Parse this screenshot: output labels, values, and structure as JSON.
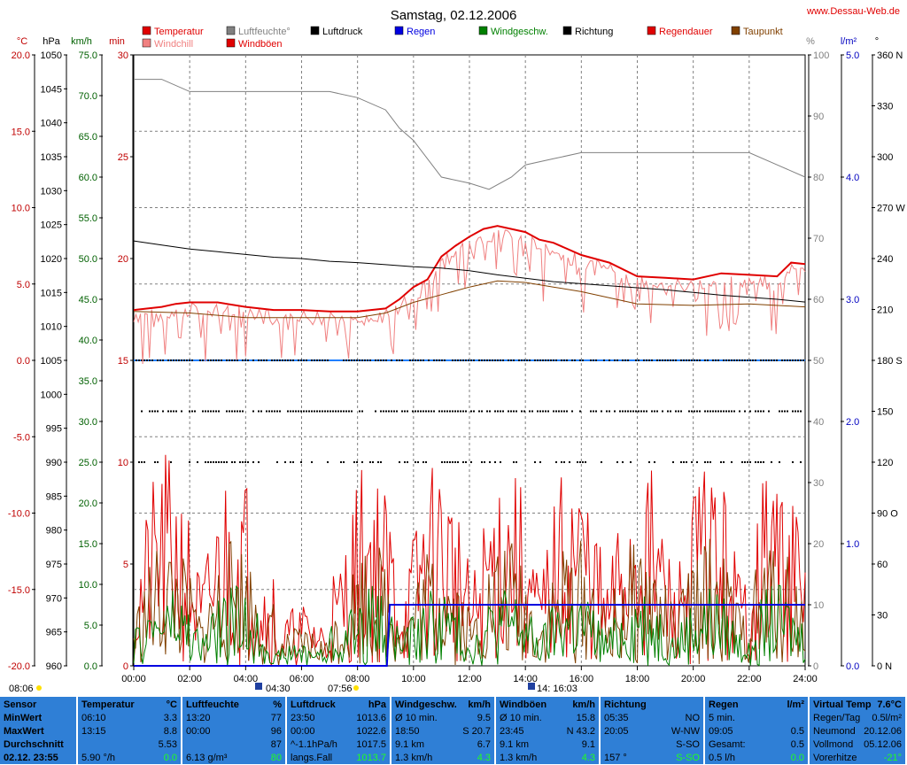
{
  "page": {
    "title": "Samstag, 02.12.2006",
    "site": "www.Dessau-Web.de"
  },
  "legend": [
    {
      "label": "Temperatur",
      "color": "#e00000"
    },
    {
      "label": "Windchill",
      "color": "#f08080"
    },
    {
      "label": "Luftfeuchte°",
      "color": "#808080"
    },
    {
      "label": "Windböen",
      "color": "#e00000"
    },
    {
      "label": "Luftdruck",
      "color": "#000000"
    },
    {
      "label": "Regen",
      "color": "#0000e0"
    },
    {
      "label": "Windgeschw.",
      "color": "#008000"
    },
    {
      "label": "Richtung",
      "color": "#000000"
    },
    {
      "label": "Regendauer",
      "color": "#e00000"
    },
    {
      "label": "Taupunkt",
      "color": "#804000"
    }
  ],
  "axes": {
    "temp": {
      "unit": "°C",
      "ticks": [
        "20.0",
        "15.0",
        "10.0",
        "5.0",
        "0.0",
        "-5.0",
        "-10.0",
        "-15.0",
        "-20.0"
      ],
      "color": "#c00000"
    },
    "pressure": {
      "unit": "hPa",
      "ticks": [
        "1050",
        "1045",
        "1040",
        "1035",
        "1030",
        "1025",
        "1020",
        "1015",
        "1010",
        "1005",
        "1000",
        "995",
        "990",
        "985",
        "980",
        "975",
        "970",
        "965",
        "960"
      ],
      "color": "#000000"
    },
    "wind": {
      "unit": "km/h",
      "ticks": [
        "75.0",
        "70.0",
        "65.0",
        "60.0",
        "55.0",
        "50.0",
        "45.0",
        "40.0",
        "35.0",
        "30.0",
        "25.0",
        "20.0",
        "15.0",
        "10.0",
        "5.0",
        "0.0"
      ],
      "color": "#006000"
    },
    "min": {
      "unit": "min",
      "ticks": [
        "30",
        "25",
        "20",
        "15",
        "10",
        "5",
        "0"
      ],
      "color": "#c00000"
    },
    "humidity": {
      "unit": "%",
      "ticks": [
        "100",
        "90",
        "80",
        "70",
        "60",
        "50",
        "40",
        "30",
        "20",
        "10",
        "0"
      ],
      "color": "#808080"
    },
    "rain": {
      "unit": "l/m²",
      "ticks": [
        "5.0",
        "4.0",
        "3.0",
        "2.0",
        "1.0",
        "0.0"
      ],
      "color": "#0000c0"
    },
    "dir": {
      "unit": "°",
      "ticks": [
        "360 N",
        "330",
        "300",
        "270 W",
        "240",
        "210",
        "180 S",
        "150",
        "120",
        "90 O",
        "60",
        "30",
        "0 N"
      ],
      "color": "#000000"
    },
    "x": {
      "ticks": [
        "00:00",
        "02:00",
        "04:00",
        "06:00",
        "08:00",
        "10:00",
        "12:00",
        "14:00",
        "16:00",
        "18:00",
        "20:00",
        "22:00",
        "24:00"
      ]
    }
  },
  "sun_moon": {
    "sunrise": "08:06",
    "moonset": "04:30",
    "sunset": "07:56",
    "moon_up": "14: 16:03"
  },
  "chart_data": {
    "type": "line",
    "title": "Samstag, 02.12.2006",
    "x_range": [
      "00:00",
      "24:00"
    ],
    "series": [
      {
        "name": "Temperatur",
        "unit": "°C",
        "color": "#e00000",
        "x": [
          0,
          1,
          1.5,
          2,
          3,
          4,
          5,
          6,
          7,
          8,
          9,
          9.5,
          10,
          10.5,
          11,
          11.5,
          12,
          12.5,
          13,
          13.5,
          14,
          14.5,
          15,
          16,
          17,
          18,
          19,
          20,
          21,
          22,
          23,
          23.5,
          24
        ],
        "y": [
          3.3,
          3.5,
          3.7,
          3.8,
          3.8,
          3.5,
          3.3,
          3.3,
          3.2,
          3.2,
          3.4,
          4,
          4.8,
          5.3,
          6.8,
          7.5,
          8.1,
          8.6,
          8.8,
          8.6,
          8.4,
          7.9,
          7.7,
          6.9,
          6.4,
          5.5,
          5.4,
          5.3,
          5.7,
          5.6,
          5.5,
          6.4,
          6.3
        ]
      },
      {
        "name": "Taupunkt",
        "unit": "°C",
        "color": "#804000",
        "x": [
          0,
          2,
          4,
          6,
          8,
          9,
          10,
          11,
          12,
          13,
          14,
          15,
          16,
          18,
          20,
          22,
          24
        ],
        "y": [
          3.2,
          3.1,
          2.8,
          2.8,
          2.8,
          3.1,
          3.8,
          4.3,
          4.8,
          5.2,
          5.1,
          4.8,
          4.5,
          3.7,
          3.6,
          3.7,
          3.5
        ]
      },
      {
        "name": "Luftfeuchte°",
        "unit": "%",
        "color": "#808080",
        "x": [
          0,
          1,
          2,
          3,
          4,
          5,
          6,
          7,
          8,
          9,
          9.5,
          10,
          11,
          12,
          12.7,
          13.5,
          14,
          15,
          16,
          17,
          18,
          19,
          20,
          21,
          22,
          23,
          24
        ],
        "y": [
          96,
          96,
          94,
          94,
          94,
          94,
          94,
          94,
          93,
          91,
          88,
          86,
          80,
          79,
          78,
          80,
          82,
          83,
          84,
          84,
          84,
          84,
          84,
          84,
          84,
          82,
          80
        ]
      },
      {
        "name": "Luftdruck",
        "unit": "hPa",
        "color": "#000000",
        "x": [
          0,
          1,
          2,
          3,
          4,
          5,
          6,
          7,
          8,
          9,
          10,
          11,
          12,
          13,
          14,
          15,
          16,
          17,
          18,
          19,
          20,
          21,
          22,
          23,
          24
        ],
        "y": [
          1022.6,
          1022.0,
          1021.4,
          1021.0,
          1020.6,
          1020.2,
          1020.0,
          1019.6,
          1019.4,
          1019.1,
          1018.8,
          1018.6,
          1018.2,
          1017.6,
          1017.1,
          1016.6,
          1016.3,
          1016.0,
          1015.7,
          1015.4,
          1015.0,
          1014.6,
          1014.3,
          1014.0,
          1013.6
        ]
      },
      {
        "name": "Regen",
        "unit": "l/m²",
        "color": "#0000e0",
        "x": [
          0,
          9.05,
          9.15,
          24
        ],
        "y": [
          0,
          0,
          0.5,
          0.5
        ]
      }
    ],
    "min_max": {
      "temp_min": {
        "time": "06:10",
        "value": "3.3"
      },
      "temp_max": {
        "time": "13:15",
        "value": "8.8"
      },
      "pressure_min": {
        "time": "23:50",
        "value": "1013.6"
      },
      "pressure_max": {
        "time": "00:00",
        "value": "1022.6"
      }
    }
  },
  "stats": [
    {
      "h1": "Sensor",
      "h2": "",
      "rows": [
        [
          "MinWert",
          ""
        ],
        [
          "MaxWert",
          ""
        ],
        [
          "Durchschnitt",
          ""
        ],
        [
          "02.12. 23:55",
          ""
        ]
      ]
    },
    {
      "h1": "Temperatur",
      "h2": "°C",
      "rows": [
        [
          "06:10",
          "3.3"
        ],
        [
          "13:15",
          "8.8"
        ],
        [
          "",
          "5.53"
        ],
        [
          "5.90 °/h",
          "0.0"
        ]
      ]
    },
    {
      "h1": "Luftfeuchte",
      "h2": "%",
      "rows": [
        [
          "13:20",
          "77"
        ],
        [
          "00:00",
          "96"
        ],
        [
          "",
          "87"
        ],
        [
          "6.13 g/m³",
          "80"
        ]
      ]
    },
    {
      "h1": "Luftdruck",
      "h2": "hPa",
      "rows": [
        [
          "23:50",
          "1013.6"
        ],
        [
          "00:00",
          "1022.6"
        ],
        [
          "^-1.1hPa/h",
          "1017.5"
        ],
        [
          "langs.Fall",
          "1013.7"
        ]
      ]
    },
    {
      "h1": "Windgeschw.",
      "h2": "km/h",
      "rows": [
        [
          "Ø 10 min.",
          "9.5"
        ],
        [
          "18:50",
          "S 20.7"
        ],
        [
          "9.1 km",
          "6.7"
        ],
        [
          "1.3 km/h",
          "4.3"
        ]
      ]
    },
    {
      "h1": "Windböen",
      "h2": "km/h",
      "rows": [
        [
          "Ø 10 min.",
          "15.8"
        ],
        [
          "23:45",
          "N 43.2"
        ],
        [
          "9.1 km",
          "9.1"
        ],
        [
          "1.3 km/h",
          "4.3"
        ]
      ]
    },
    {
      "h1": "Richtung",
      "h2": "",
      "rows": [
        [
          "05:35",
          "NO"
        ],
        [
          "20:05",
          "W-NW"
        ],
        [
          "",
          "S-SO"
        ],
        [
          "157 °",
          "S-SO"
        ]
      ]
    },
    {
      "h1": "Regen",
      "h2": "l/m²",
      "rows": [
        [
          "5 min.",
          ""
        ],
        [
          "09:05",
          "0.5"
        ],
        [
          "Gesamt:",
          "0.5"
        ],
        [
          "0.5 l/h",
          "0.0"
        ]
      ]
    },
    {
      "h1": "Virtual Temp",
      "h2": "7.6°C",
      "rows": [
        [
          "Regen/Tag",
          "0.5l/m²"
        ],
        [
          "Neumond",
          "20.12.06"
        ],
        [
          "Vollmond",
          "05.12.06"
        ],
        [
          "Vorerhitze",
          "-21°"
        ]
      ]
    }
  ]
}
